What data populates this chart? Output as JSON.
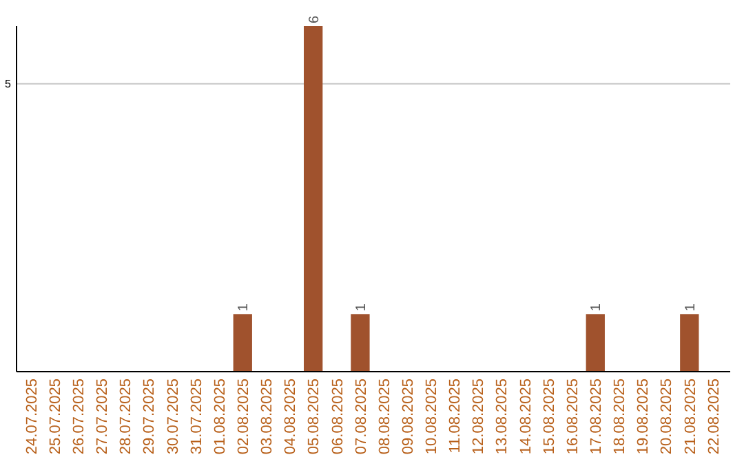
{
  "chart_data": {
    "type": "bar",
    "categories": [
      "24.07.2025",
      "25.07.2025",
      "26.07.2025",
      "27.07.2025",
      "28.07.2025",
      "29.07.2025",
      "30.07.2025",
      "31.07.2025",
      "01.08.2025",
      "02.08.2025",
      "03.08.2025",
      "04.08.2025",
      "05.08.2025",
      "06.08.2025",
      "07.08.2025",
      "08.08.2025",
      "09.08.2025",
      "10.08.2025",
      "11.08.2025",
      "12.08.2025",
      "13.08.2025",
      "14.08.2025",
      "15.08.2025",
      "16.08.2025",
      "17.08.2025",
      "18.08.2025",
      "19.08.2025",
      "20.08.2025",
      "21.08.2025",
      "22.08.2025"
    ],
    "values": [
      0,
      0,
      0,
      0,
      0,
      0,
      0,
      0,
      0,
      1,
      0,
      0,
      6,
      0,
      1,
      0,
      0,
      0,
      0,
      0,
      0,
      0,
      0,
      0,
      1,
      0,
      0,
      0,
      1,
      0
    ],
    "value_labels": [
      null,
      null,
      null,
      null,
      null,
      null,
      null,
      null,
      null,
      "1",
      null,
      null,
      "6",
      null,
      "1",
      null,
      null,
      null,
      null,
      null,
      null,
      null,
      null,
      null,
      "1",
      null,
      null,
      null,
      "1",
      null
    ],
    "color": "#a0522d",
    "ylim": [
      0,
      6
    ],
    "yticks": [
      5
    ],
    "grid": "y"
  }
}
